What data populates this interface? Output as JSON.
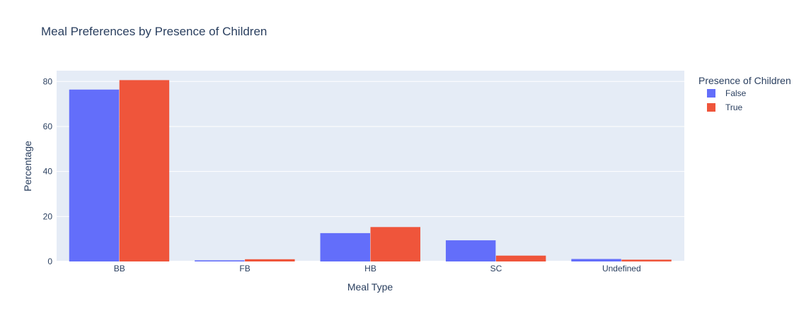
{
  "chart_data": {
    "type": "bar",
    "title": "Meal Preferences by Presence of Children",
    "xlabel": "Meal Type",
    "ylabel": "Percentage",
    "categories": [
      "BB",
      "FB",
      "HB",
      "SC",
      "Undefined"
    ],
    "series": [
      {
        "name": "False",
        "values": [
          76.4,
          0.5,
          12.6,
          9.4,
          1.1
        ],
        "color": "#636efa"
      },
      {
        "name": "True",
        "values": [
          80.6,
          1.0,
          15.3,
          2.6,
          0.8
        ],
        "color": "#ef553b"
      }
    ],
    "ylim": [
      0,
      84.8
    ],
    "yticks": [
      0,
      20,
      40,
      60,
      80
    ],
    "grid": true,
    "plot_background": "#e5ecf6",
    "legend": {
      "title": "Presence of Children",
      "placement": "right"
    }
  }
}
